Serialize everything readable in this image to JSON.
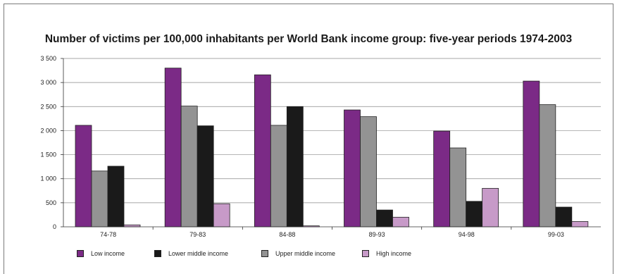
{
  "chart_data": {
    "type": "bar",
    "title": "Number of victims per 100,000 inhabitants per World Bank income group: five-year periods 1974-2003",
    "categories": [
      "74-78",
      "79-83",
      "84-88",
      "89-93",
      "94-98",
      "99-03"
    ],
    "ylim": [
      0,
      3500
    ],
    "yticks": [
      "0",
      "500",
      "1 000",
      "1 500",
      "2 000",
      "2 500",
      "3 000",
      "3 500"
    ],
    "grid": true,
    "legend_position": "bottom",
    "series": [
      {
        "name": "Low income",
        "color": "#7b2a86",
        "values": [
          2110,
          3300,
          3160,
          2430,
          1990,
          3030
        ]
      },
      {
        "name": "Upper middle income",
        "color": "#939393",
        "values": [
          1160,
          2510,
          2110,
          2290,
          1640,
          2540
        ]
      },
      {
        "name": "Lower middle income",
        "color": "#1a1a1a",
        "values": [
          1260,
          2100,
          2500,
          350,
          530,
          410
        ]
      },
      {
        "name": "High income",
        "color": "#c79ac8",
        "values": [
          40,
          480,
          20,
          200,
          800,
          110
        ]
      }
    ],
    "legend": [
      {
        "name": "Low income",
        "color": "#7b2a86"
      },
      {
        "name": "Lower middle income",
        "color": "#1a1a1a"
      },
      {
        "name": "Upper middle income",
        "color": "#939393"
      },
      {
        "name": "High income",
        "color": "#c79ac8"
      }
    ]
  }
}
